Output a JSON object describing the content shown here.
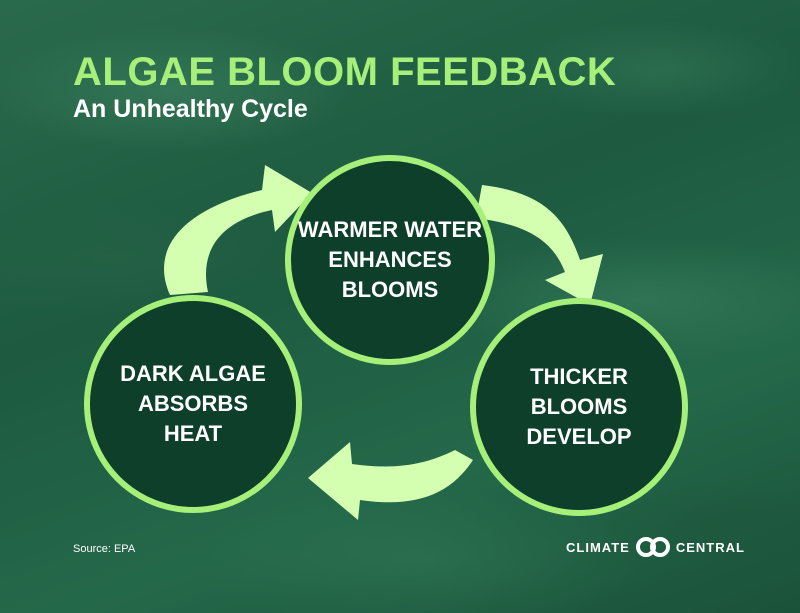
{
  "title": "ALGAE BLOOM FEEDBACK",
  "subtitle": "An Unhealthy Cycle",
  "diagram": {
    "nodes": [
      {
        "lines": [
          "WARMER WATER",
          "ENHANCES",
          "BLOOMS"
        ]
      },
      {
        "lines": [
          "DARK ALGAE",
          "ABSORBS",
          "HEAT"
        ]
      },
      {
        "lines": [
          "THICKER",
          "BLOOMS",
          "DEVELOP"
        ]
      }
    ],
    "arrow_color": "#d4ffb0",
    "circle_border_color": "#a6f07a",
    "circle_fill_color": "#0e3f2a"
  },
  "source": "Source: EPA",
  "logo": {
    "left_text": "CLIMATE",
    "right_text": "CENTRAL",
    "icon": "interlocking-rings-icon"
  }
}
